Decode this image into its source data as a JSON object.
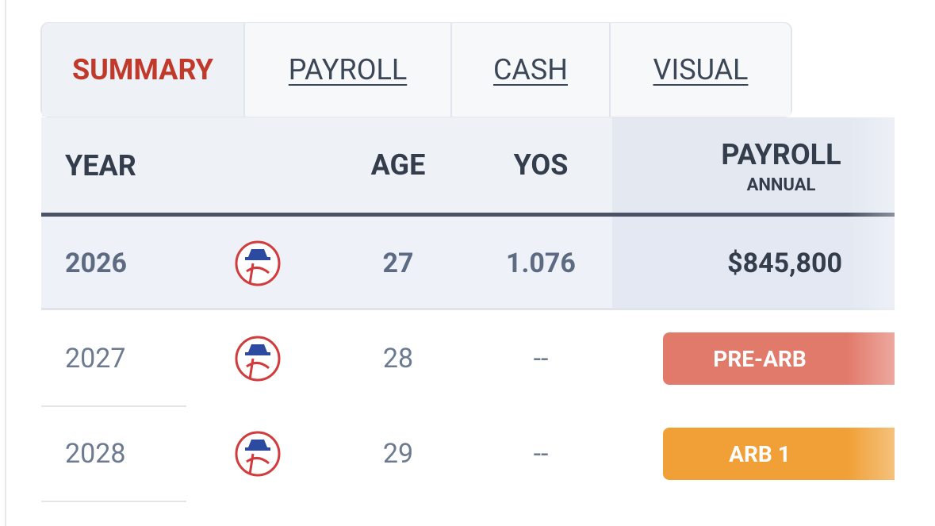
{
  "tabs": [
    "SUMMARY",
    "PAYROLL",
    "CASH",
    "VISUAL"
  ],
  "table": {
    "headers": {
      "year": "YEAR",
      "age": "AGE",
      "yos": "YOS",
      "payroll": "PAYROLL",
      "payroll_sub": "ANNUAL"
    },
    "rows": [
      [
        "2026",
        "27",
        "1.076",
        "$845,800"
      ],
      [
        "2027",
        "28",
        "--",
        "PRE-ARB"
      ],
      [
        "2028",
        "29",
        "--",
        "ARB 1"
      ]
    ]
  }
}
